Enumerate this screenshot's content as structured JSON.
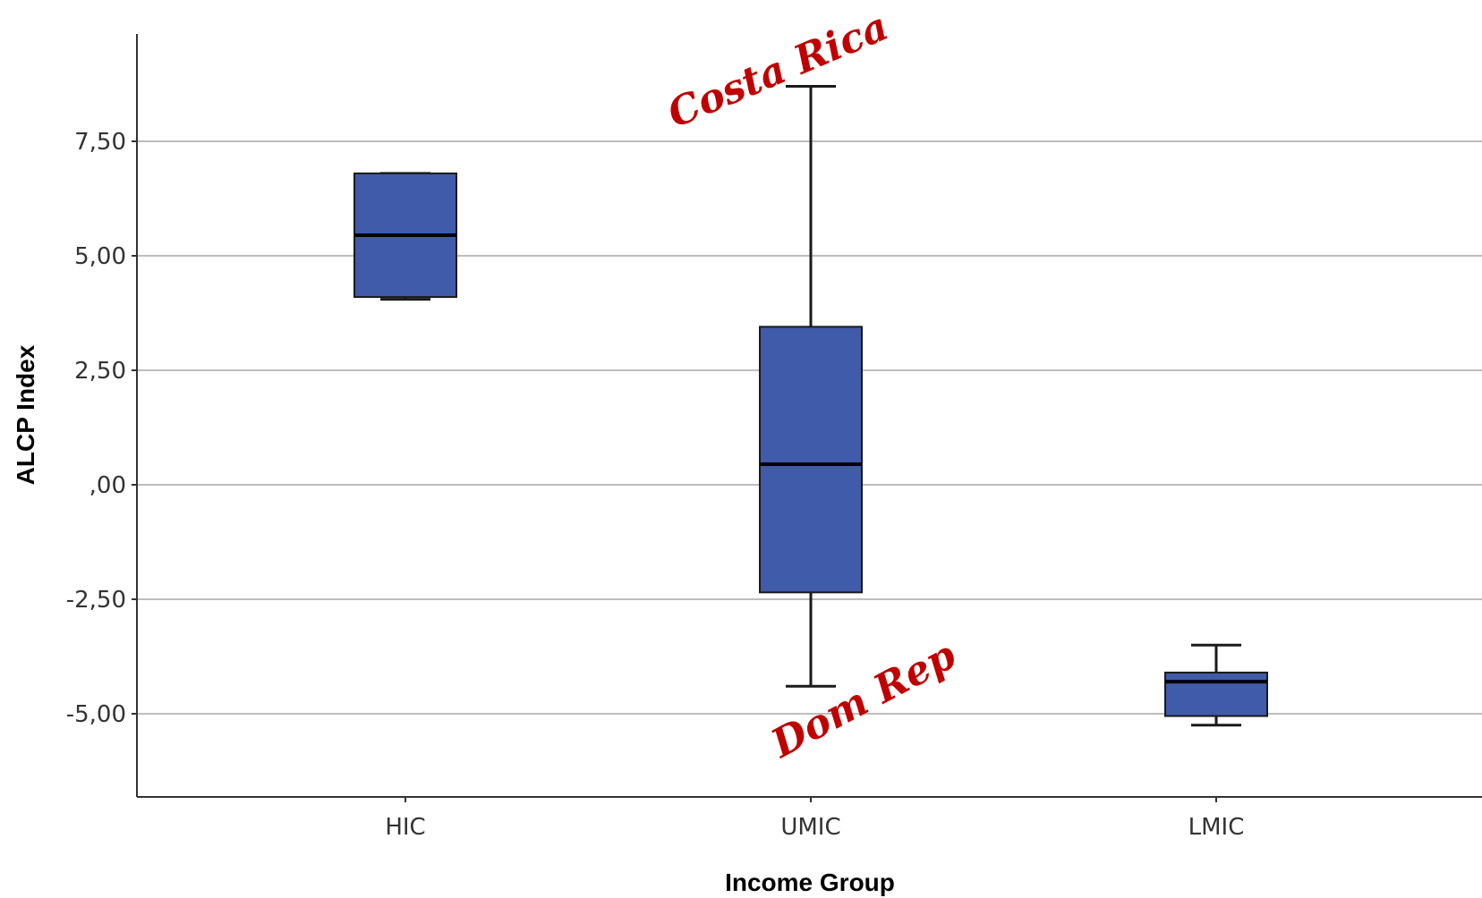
{
  "chart_data": {
    "type": "boxplot",
    "xlabel": "Income Group",
    "ylabel": "ALCP Index",
    "ylim": [
      -6.5,
      9.6
    ],
    "yticks": [
      {
        "value": 7.5,
        "label": "7,50"
      },
      {
        "value": 5.0,
        "label": "5,00"
      },
      {
        "value": 2.5,
        "label": "2,50"
      },
      {
        "value": 0.0,
        "label": ",00"
      },
      {
        "value": -2.5,
        "label": "-2,50"
      },
      {
        "value": -5.0,
        "label": "-5,00"
      }
    ],
    "grid": "horizontal",
    "colors": {
      "box": "#3f5ba9",
      "outline": "#1a1a1a",
      "grid": "#bdbdbd",
      "annotation": "#c00000"
    },
    "boxes": [
      {
        "category": "HIC",
        "min": 4.05,
        "q1": 4.1,
        "median": 5.45,
        "q3": 6.8,
        "max": 6.8
      },
      {
        "category": "UMIC",
        "min": -4.4,
        "q1": -2.35,
        "median": 0.45,
        "q3": 3.45,
        "max": 8.7
      },
      {
        "category": "LMIC",
        "min": -5.25,
        "q1": -5.05,
        "median": -4.3,
        "q3": -4.1,
        "max": -3.5
      }
    ],
    "annotations": [
      {
        "text": "Costa Rica",
        "category": "UMIC",
        "y": 8.7,
        "anchor": "max"
      },
      {
        "text": "Dom Rep",
        "category": "UMIC",
        "y": -4.4,
        "anchor": "min"
      }
    ]
  }
}
